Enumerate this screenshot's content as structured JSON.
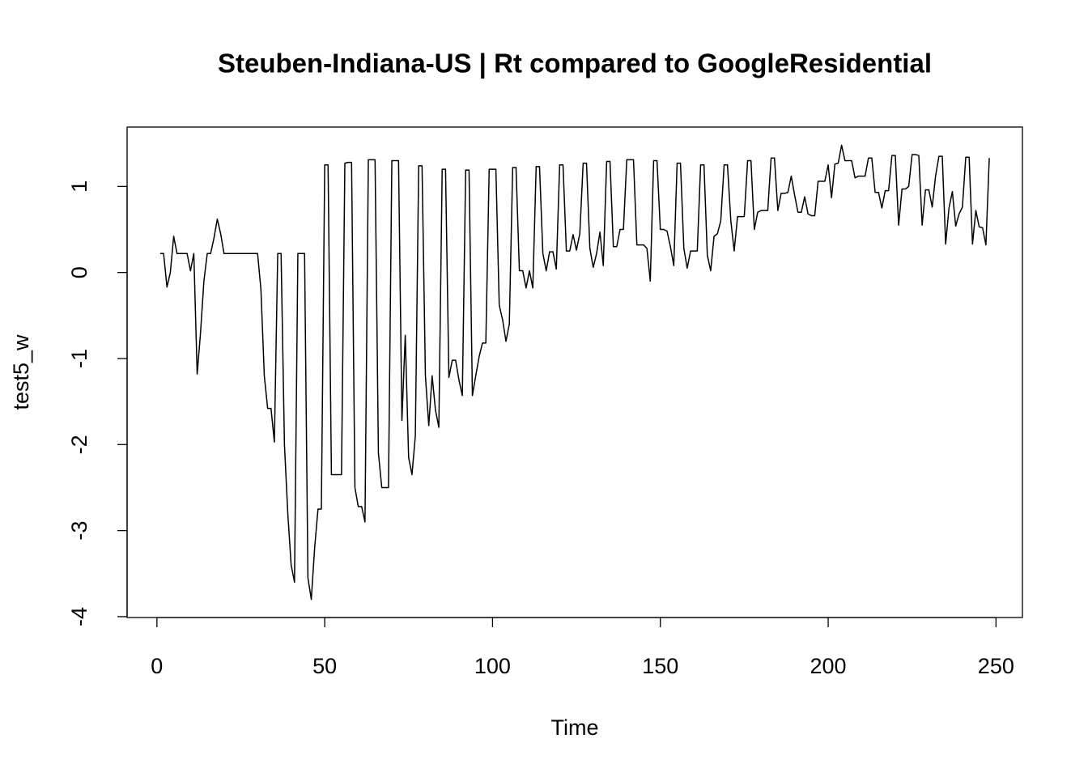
{
  "chart_data": {
    "type": "line",
    "title": "Steuben-Indiana-US | Rt compared to GoogleResidential",
    "xlabel": "Time",
    "ylabel": "test5_w",
    "x": [
      1,
      2,
      3,
      4,
      5,
      6,
      7,
      8,
      9,
      10,
      11,
      12,
      13,
      14,
      15,
      16,
      17,
      18,
      19,
      20,
      21,
      22,
      23,
      24,
      25,
      26,
      27,
      28,
      29,
      30,
      31,
      32,
      33,
      34,
      35,
      36,
      37,
      38,
      39,
      40,
      41,
      42,
      43,
      44,
      45,
      46,
      47,
      48,
      49,
      50,
      51,
      52,
      53,
      54,
      55,
      56,
      57,
      58,
      59,
      60,
      61,
      62,
      63,
      64,
      65,
      66,
      67,
      68,
      69,
      70,
      71,
      72,
      73,
      74,
      75,
      76,
      77,
      78,
      79,
      80,
      81,
      82,
      83,
      84,
      85,
      86,
      87,
      88,
      89,
      90,
      91,
      92,
      93,
      94,
      95,
      96,
      97,
      98,
      99,
      100,
      101,
      102,
      103,
      104,
      105,
      106,
      107,
      108,
      109,
      110,
      111,
      112,
      113,
      114,
      115,
      116,
      117,
      118,
      119,
      120,
      121,
      122,
      123,
      124,
      125,
      126,
      127,
      128,
      129,
      130,
      131,
      132,
      133,
      134,
      135,
      136,
      137,
      138,
      139,
      140,
      141,
      142,
      143,
      144,
      145,
      146,
      147,
      148,
      149,
      150,
      151,
      152,
      153,
      154,
      155,
      156,
      157,
      158,
      159,
      160,
      161,
      162,
      163,
      164,
      165,
      166,
      167,
      168,
      169,
      170,
      171,
      172,
      173,
      174,
      175,
      176,
      177,
      178,
      179,
      180,
      181,
      182,
      183,
      184,
      185,
      186,
      187,
      188,
      189,
      190,
      191,
      192,
      193,
      194,
      195,
      196,
      197,
      198,
      199,
      200,
      201,
      202,
      203,
      204,
      205,
      206,
      207,
      208,
      209,
      210,
      211,
      212,
      213,
      214,
      215,
      216,
      217,
      218,
      219,
      220,
      221,
      222,
      223,
      224,
      225,
      226,
      227,
      228,
      229,
      230,
      231,
      232,
      233,
      234,
      235,
      236,
      237,
      238,
      239,
      240,
      241,
      242,
      243,
      244,
      245,
      246,
      247,
      248
    ],
    "series": [
      {
        "color": "#000000",
        "values": [
          0.22,
          0.22,
          -0.17,
          0,
          0.42,
          0.22,
          0.22,
          0.22,
          0.22,
          0.02,
          0.22,
          -1.18,
          -0.7,
          -0.1,
          0.22,
          0.22,
          0.4,
          0.62,
          0.45,
          0.22,
          0.22,
          0.22,
          0.22,
          0.22,
          0.22,
          0.22,
          0.22,
          0.22,
          0.22,
          0.22,
          -0.2,
          -1.2,
          -1.58,
          -1.58,
          -1.97,
          0.22,
          0.22,
          -2.0,
          -2.8,
          -3.4,
          -3.6,
          0.22,
          0.22,
          0.22,
          -3.55,
          -3.8,
          -3.2,
          -2.75,
          -2.75,
          1.25,
          1.25,
          -2.35,
          -2.35,
          -2.35,
          -2.35,
          1.27,
          1.28,
          1.28,
          -2.5,
          -2.72,
          -2.72,
          -2.9,
          1.31,
          1.31,
          1.31,
          -2.1,
          -2.5,
          -2.5,
          -2.5,
          1.3,
          1.3,
          1.3,
          -1.72,
          -0.73,
          -2.15,
          -2.35,
          -1.9,
          1.24,
          1.24,
          -1.2,
          -1.78,
          -1.2,
          -1.6,
          -1.8,
          1.2,
          1.2,
          -1.22,
          -1.02,
          -1.02,
          -1.25,
          -1.43,
          1.19,
          1.19,
          -1.43,
          -1.2,
          -0.98,
          -0.82,
          -0.82,
          1.2,
          1.2,
          1.2,
          -0.38,
          -0.55,
          -0.8,
          -0.6,
          1.22,
          1.22,
          0.02,
          0.02,
          -0.18,
          0.02,
          -0.18,
          1.23,
          1.23,
          0.22,
          0.02,
          0.24,
          0.24,
          0.04,
          1.25,
          1.25,
          0.25,
          0.25,
          0.44,
          0.26,
          0.45,
          1.27,
          1.27,
          0.28,
          0.06,
          0.22,
          0.47,
          0.08,
          1.29,
          1.29,
          0.3,
          0.3,
          0.5,
          0.5,
          1.31,
          1.31,
          1.31,
          0.32,
          0.32,
          0.32,
          0.28,
          -0.1,
          1.3,
          1.3,
          0.5,
          0.5,
          0.48,
          0.3,
          0.08,
          1.27,
          1.27,
          0.28,
          0.05,
          0.25,
          0.25,
          0.25,
          1.25,
          1.25,
          0.2,
          0.02,
          0.42,
          0.45,
          0.6,
          1.25,
          1.25,
          0.6,
          0.25,
          0.65,
          0.65,
          0.65,
          1.3,
          1.3,
          0.5,
          0.7,
          0.72,
          0.72,
          0.72,
          1.33,
          1.33,
          0.72,
          0.92,
          0.92,
          0.93,
          1.12,
          0.9,
          0.7,
          0.7,
          0.88,
          0.68,
          0.66,
          0.66,
          1.06,
          1.06,
          1.06,
          1.25,
          0.87,
          1.26,
          1.27,
          1.48,
          1.3,
          1.3,
          1.3,
          1.1,
          1.12,
          1.12,
          1.12,
          1.33,
          1.33,
          0.93,
          0.93,
          0.75,
          0.95,
          0.95,
          1.36,
          1.36,
          0.55,
          0.97,
          0.97,
          1.0,
          1.37,
          1.37,
          1.36,
          0.55,
          0.96,
          0.96,
          0.76,
          1.12,
          1.35,
          1.35,
          0.33,
          0.75,
          0.94,
          0.54,
          0.68,
          0.76,
          1.34,
          1.34,
          0.33,
          0.72,
          0.53,
          0.52,
          0.32,
          1.33
        ]
      }
    ],
    "xlim": [
      -8.88,
      257.88
    ],
    "ylim": [
      -4.01,
      1.69
    ],
    "xticks": [
      0,
      50,
      100,
      150,
      200,
      250
    ],
    "yticks": [
      -4,
      -3,
      -2,
      -1,
      0,
      1
    ]
  }
}
